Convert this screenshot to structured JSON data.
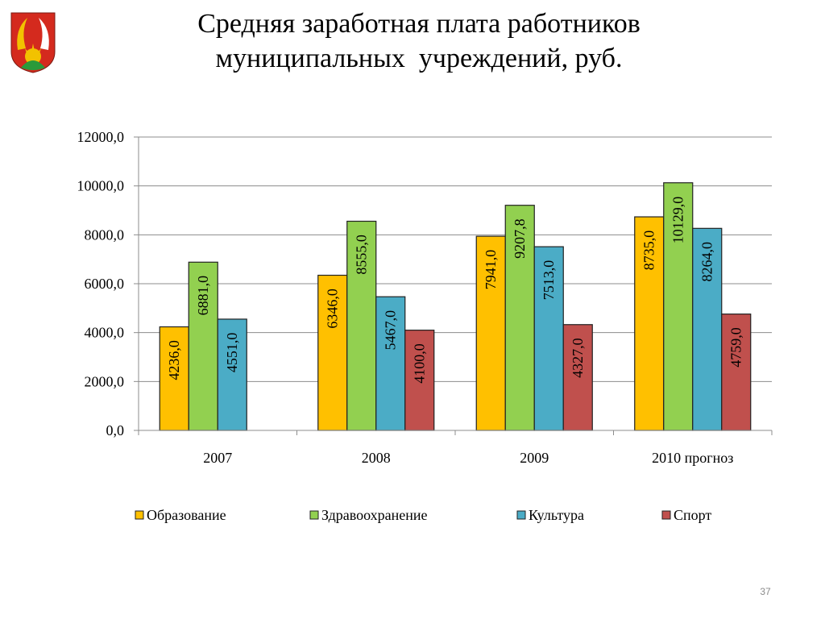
{
  "slide": {
    "title_line1": "Средняя заработная плата работников",
    "title_line2": "муниципальных  учреждений, руб.",
    "page_number": "37",
    "emblem": {
      "icon": "coat-of-arms-icon",
      "colors": [
        "#d42a1e",
        "#f2c200",
        "#2a9a3a",
        "#ffffff"
      ]
    }
  },
  "chart_data": {
    "type": "bar",
    "categories": [
      "2007",
      "2008",
      "2009",
      "2010 прогноз"
    ],
    "series": [
      {
        "name": "Образование",
        "color": "#ffc000",
        "values": [
          4236.0,
          6346.0,
          7941.0,
          8735.0
        ],
        "labels": [
          "4236,0",
          "6346,0",
          "7941,0",
          "8735,0"
        ]
      },
      {
        "name": "Здравоохранение",
        "color": "#92d050",
        "values": [
          6881.0,
          8555.0,
          9207.8,
          10129.0
        ],
        "labels": [
          "6881,0",
          "8555,0",
          "9207,8",
          "10129,0"
        ]
      },
      {
        "name": "Культура",
        "color": "#4bacc6",
        "values": [
          4551.0,
          5467.0,
          7513.0,
          8264.0
        ],
        "labels": [
          "4551,0",
          "5467,0",
          "7513,0",
          "8264,0"
        ]
      },
      {
        "name": "Спорт",
        "color": "#c0504d",
        "values": [
          null,
          4100.0,
          4327.0,
          4759.0
        ],
        "labels": [
          "",
          "4100,0",
          "4327,0",
          "4759,0"
        ]
      }
    ],
    "ylim": [
      0,
      12000
    ],
    "y_ticks": [
      0,
      2000,
      4000,
      6000,
      8000,
      10000,
      12000
    ],
    "y_tick_labels": [
      "0,0",
      "2000,0",
      "4000,0",
      "6000,0",
      "8000,0",
      "10000,0",
      "12000,0"
    ],
    "xlabel": "",
    "ylabel": "",
    "grid": true,
    "legend_position": "bottom"
  }
}
